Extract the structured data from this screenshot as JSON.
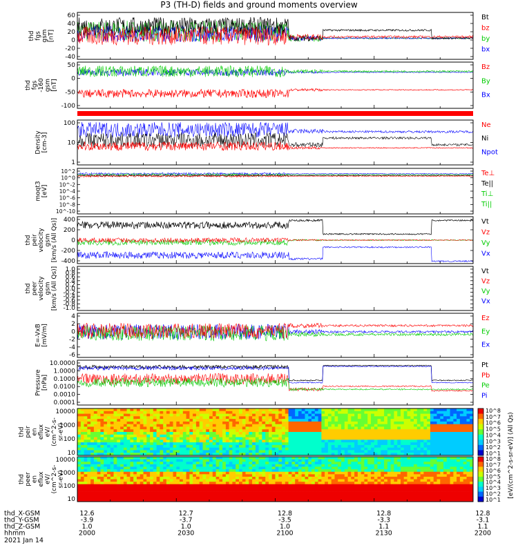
{
  "title": "P3 (TH-D) fields and ground moments overview",
  "chart_data": {
    "type": "line",
    "panels": [
      {
        "id": "fgs",
        "ylabel": [
          "thd",
          "fgs",
          "gsm",
          "[nT]"
        ],
        "yticks": [
          "60",
          "40",
          "20",
          "0",
          "-20",
          "-40"
        ],
        "ylim": [
          -45,
          62
        ],
        "legend": [
          {
            "name": "Bt",
            "color": "#000000"
          },
          {
            "name": "bz",
            "color": "#ff0000"
          },
          {
            "name": "by",
            "color": "#00cc00"
          },
          {
            "name": "bx",
            "color": "#0000ff"
          }
        ]
      },
      {
        "id": "fgs2",
        "ylabel": [
          "thd",
          "fgs",
          "-160",
          "gsm",
          "[nT]"
        ],
        "yticks": [
          "50",
          "0",
          "-50",
          "-100"
        ],
        "ylim": [
          -125,
          60
        ],
        "legend": [
          {
            "name": "Bz",
            "color": "#ff0000"
          },
          {
            "name": "By",
            "color": "#00cc00"
          },
          {
            "name": "Bx",
            "color": "#0000ff"
          }
        ]
      },
      {
        "id": "density",
        "ylabel": [
          "Density",
          "[cm-3]"
        ],
        "yticks": [
          "100",
          "10",
          "1"
        ],
        "log": true,
        "legend": [
          {
            "name": "Ne",
            "color": "#ff0000"
          },
          {
            "name": "Ni",
            "color": "#000000"
          },
          {
            "name": "Npot",
            "color": "#0000ff"
          }
        ]
      },
      {
        "id": "temp",
        "ylabel": [
          "moqt3",
          "[eV]"
        ],
        "yticks": [
          "10^2",
          "10^0",
          "10^-2",
          "10^-4",
          "10^-6",
          "10^-8",
          "10^-10"
        ],
        "log": true,
        "legend": [
          {
            "name": "Te⊥",
            "color": "#ff0000"
          },
          {
            "name": "Te||",
            "color": "#000000"
          },
          {
            "name": "Ti⊥",
            "color": "#00cc00"
          },
          {
            "name": "Ti||",
            "color": "#00cc00"
          }
        ]
      },
      {
        "id": "pvel",
        "ylabel": [
          "thd",
          "peir",
          "velocity",
          "gsm",
          "[km/s (All Qs)]"
        ],
        "yticks": [
          "400",
          "200",
          "0",
          "-200",
          "-400"
        ],
        "ylim": [
          -400,
          400
        ],
        "legend": [
          {
            "name": "Vt",
            "color": "#000000"
          },
          {
            "name": "Vz",
            "color": "#ff0000"
          },
          {
            "name": "Vy",
            "color": "#00cc00"
          },
          {
            "name": "Vx",
            "color": "#0000ff"
          }
        ]
      },
      {
        "id": "evel",
        "ylabel": [
          "thd",
          "peer",
          "velocity",
          "gsm",
          "[km/s (All Qs)]"
        ],
        "yticks": [
          "1.0",
          "0.8",
          "0.6",
          "0.4",
          "0.2",
          "0.0",
          "-0.2",
          "-0.4",
          "-0.6",
          "-0.8",
          "-1.0"
        ],
        "ylim": [
          -1,
          1
        ],
        "legend": [
          {
            "name": "Vt",
            "color": "#000000"
          },
          {
            "name": "Vz",
            "color": "#ff0000"
          },
          {
            "name": "Vy",
            "color": "#00cc00"
          },
          {
            "name": "Vx",
            "color": "#0000ff"
          }
        ]
      },
      {
        "id": "efield",
        "ylabel": [
          "E=-VxB",
          "[mV/m]"
        ],
        "yticks": [
          "4",
          "2",
          "0",
          "-2",
          "-4",
          "-6"
        ],
        "ylim": [
          -6,
          4
        ],
        "legend": [
          {
            "name": "Ez",
            "color": "#ff0000"
          },
          {
            "name": "Ey",
            "color": "#00cc00"
          },
          {
            "name": "Ex",
            "color": "#0000ff"
          }
        ]
      },
      {
        "id": "pressure",
        "ylabel": [
          "Pressure",
          "[nPa]"
        ],
        "yticks": [
          "10.0000",
          "1.0000",
          "0.1000",
          "0.0100",
          "0.0010",
          "0.0001"
        ],
        "log": true,
        "legend": [
          {
            "name": "Pt",
            "color": "#000000"
          },
          {
            "name": "Pb",
            "color": "#ff0000"
          },
          {
            "name": "Pe",
            "color": "#00cc00"
          },
          {
            "name": "Pi",
            "color": "#0000ff"
          }
        ]
      },
      {
        "id": "ispec",
        "ylabel": [
          "thd",
          "peir",
          "en",
          "eflux",
          "eV/",
          "(cm^2-s-",
          "sr-eV)"
        ],
        "yticks": [
          "10000",
          "1000",
          "100",
          "10"
        ],
        "log": true
      },
      {
        "id": "espec",
        "ylabel": [
          "thd",
          "peer",
          "en",
          "eflux",
          "eV/",
          "(cm^2-s-",
          "sr-eV)"
        ],
        "yticks": [
          "10000",
          "1000",
          "100",
          "10"
        ],
        "log": true
      }
    ],
    "colorbar": {
      "ticks": [
        "10^8",
        "10^7",
        "10^6",
        "10^5",
        "10^4",
        "10^3",
        "10^2",
        "10^1"
      ],
      "label": "[eV/(cm^2-s-sr-eV)] (All Qs)"
    },
    "xaxis": {
      "rows": [
        {
          "label": "thd_X-GSM",
          "values": [
            "12.6",
            "12.7",
            "12.8",
            "12.8",
            "12.8"
          ]
        },
        {
          "label": "thd_Y-GSM",
          "values": [
            "-3.9",
            "-3.7",
            "-3.5",
            "-3.3",
            "-3.1"
          ]
        },
        {
          "label": "thd_Z-GSM",
          "values": [
            "1.0",
            "1.0",
            "1.0",
            "1.1",
            "1.1"
          ]
        },
        {
          "label": "hhmm",
          "values": [
            "2000",
            "2030",
            "2100",
            "2130",
            "2200"
          ]
        }
      ],
      "date": "2021 Jan 14"
    },
    "series_colors": {
      "black": "#000000",
      "red": "#ff0000",
      "green": "#00cc00",
      "blue": "#0000ff"
    }
  }
}
